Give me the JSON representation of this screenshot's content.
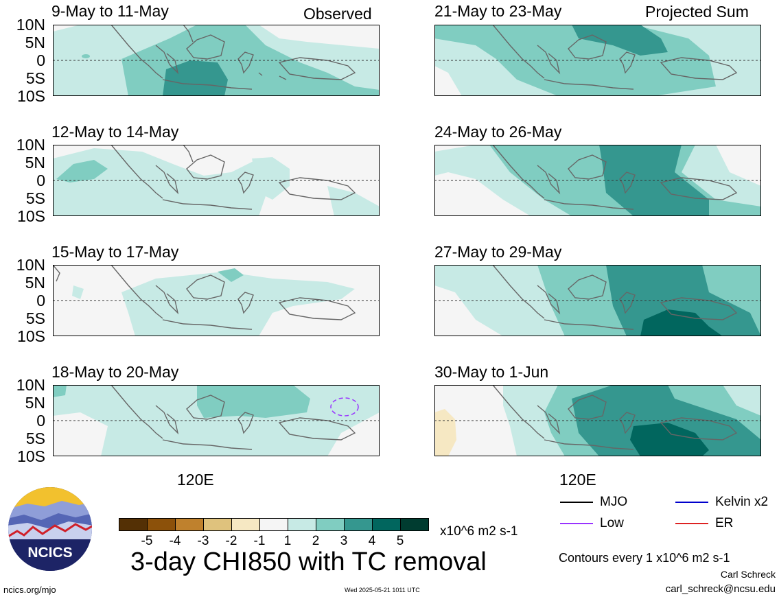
{
  "column_labels": {
    "left": "Observed",
    "right": "Projected Sum"
  },
  "panels": [
    {
      "title": "9-May to 11-May"
    },
    {
      "title": "12-May to 14-May"
    },
    {
      "title": "15-May to 17-May"
    },
    {
      "title": "18-May to 20-May"
    },
    {
      "title": "21-May to 23-May"
    },
    {
      "title": "24-May to 26-May"
    },
    {
      "title": "27-May to 29-May"
    },
    {
      "title": "30-May to 1-Jun"
    }
  ],
  "lat_labels": [
    "10N",
    "5N",
    "0",
    "5S",
    "10S"
  ],
  "lon_label": "120E",
  "colorbar": {
    "ticks": [
      "-5",
      "-4",
      "-3",
      "-2",
      "-1",
      "1",
      "2",
      "3",
      "4",
      "5"
    ],
    "units": "x10^6 m2 s-1",
    "colors": [
      "#543005",
      "#8c510a",
      "#bf812d",
      "#dfc27d",
      "#f6e8c3",
      "#f5f5f5",
      "#c7eae5",
      "#80cdc1",
      "#35978f",
      "#01665e",
      "#003c30"
    ]
  },
  "main_title": "3-day CHI850 with TC removal",
  "legend": {
    "items": [
      {
        "label": "MJO",
        "color": "#000000"
      },
      {
        "label": "Kelvin x2",
        "color": "#0000cc"
      },
      {
        "label": "Low",
        "color": "#9933ff"
      },
      {
        "label": "ER",
        "color": "#dd2222"
      }
    ]
  },
  "contour_note": "Contours every 1 x10^6 m2 s-1",
  "author": "Carl Schreck",
  "email": "carl_schreck@ncsu.edu",
  "website": "ncics.org/mjo",
  "timestamp": "Wed 2025-05-21 1011 UTC",
  "logo_text": "NCICS"
}
